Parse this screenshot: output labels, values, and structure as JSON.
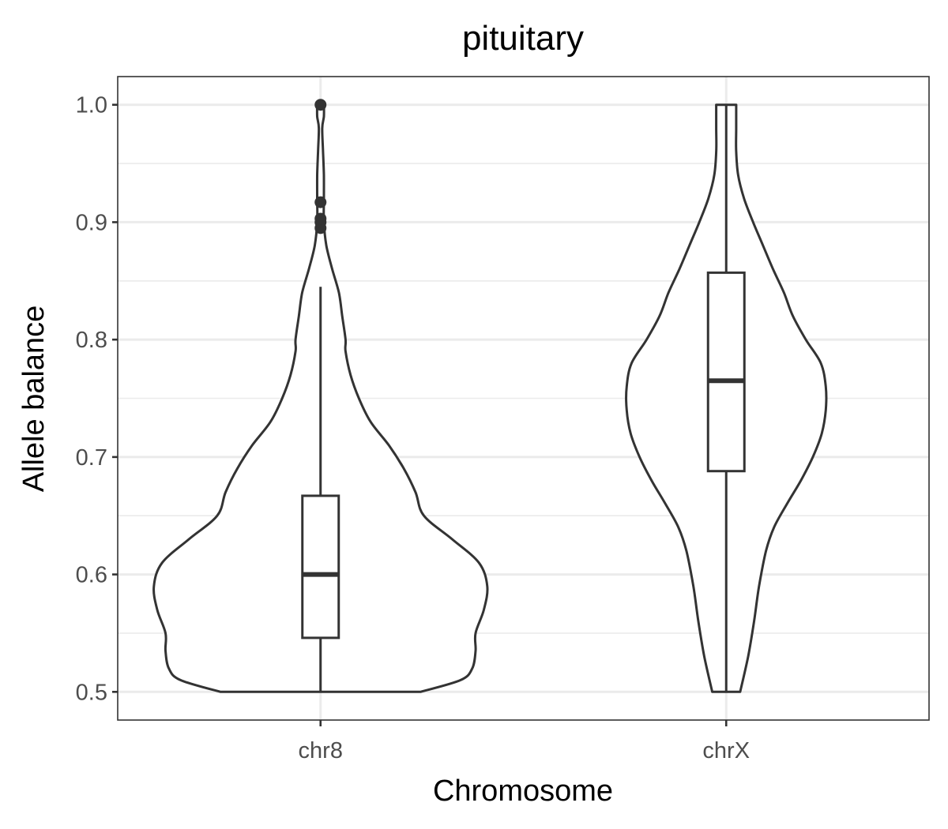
{
  "chart_data": {
    "type": "violin",
    "title": "pituitary",
    "xlabel": "Chromosome",
    "ylabel": "Allele balance",
    "categories": [
      "chr8",
      "chrX"
    ],
    "ylim": [
      0.476,
      1.024
    ],
    "yticks": [
      0.5,
      0.6,
      0.7,
      0.8,
      0.9,
      1.0
    ],
    "ytick_labels": [
      "0.5",
      "0.6",
      "0.7",
      "0.8",
      "0.9",
      "1.0"
    ],
    "grid": true,
    "legend": "none",
    "groups": [
      {
        "category": "chr8",
        "box": {
          "lower_whisker": 0.5,
          "q1": 0.546,
          "median": 0.6,
          "q3": 0.667,
          "upper_whisker": 0.845
        },
        "outliers": [
          0.895,
          0.9,
          0.903,
          0.917,
          1.0
        ],
        "density_profile": [
          [
            0.5,
            0.6
          ],
          [
            0.51,
            0.84
          ],
          [
            0.52,
            0.91
          ],
          [
            0.535,
            0.93
          ],
          [
            0.55,
            0.93
          ],
          [
            0.57,
            0.98
          ],
          [
            0.59,
            1.0
          ],
          [
            0.61,
            0.95
          ],
          [
            0.63,
            0.79
          ],
          [
            0.65,
            0.62
          ],
          [
            0.67,
            0.57
          ],
          [
            0.69,
            0.5
          ],
          [
            0.71,
            0.41
          ],
          [
            0.73,
            0.3
          ],
          [
            0.75,
            0.23
          ],
          [
            0.77,
            0.18
          ],
          [
            0.79,
            0.15
          ],
          [
            0.8,
            0.15
          ],
          [
            0.82,
            0.13
          ],
          [
            0.84,
            0.11
          ],
          [
            0.86,
            0.07
          ],
          [
            0.88,
            0.035
          ],
          [
            0.9,
            0.02
          ],
          [
            0.92,
            0.02
          ],
          [
            0.94,
            0.02
          ],
          [
            0.96,
            0.015
          ],
          [
            0.98,
            0.01
          ],
          [
            0.99,
            0.02
          ],
          [
            1.0,
            0.02
          ]
        ]
      },
      {
        "category": "chrX",
        "box": {
          "lower_whisker": 0.5,
          "q1": 0.688,
          "median": 0.765,
          "q3": 0.857,
          "upper_whisker": 1.0
        },
        "outliers": [],
        "density_profile": [
          [
            0.5,
            0.14
          ],
          [
            0.53,
            0.22
          ],
          [
            0.56,
            0.28
          ],
          [
            0.59,
            0.33
          ],
          [
            0.62,
            0.4
          ],
          [
            0.64,
            0.48
          ],
          [
            0.66,
            0.61
          ],
          [
            0.68,
            0.75
          ],
          [
            0.7,
            0.87
          ],
          [
            0.72,
            0.96
          ],
          [
            0.74,
            1.0
          ],
          [
            0.76,
            1.0
          ],
          [
            0.78,
            0.95
          ],
          [
            0.8,
            0.8
          ],
          [
            0.82,
            0.67
          ],
          [
            0.84,
            0.58
          ],
          [
            0.86,
            0.47
          ],
          [
            0.88,
            0.37
          ],
          [
            0.9,
            0.27
          ],
          [
            0.92,
            0.18
          ],
          [
            0.94,
            0.12
          ],
          [
            0.96,
            0.1
          ],
          [
            0.98,
            0.1
          ],
          [
            1.0,
            0.1
          ]
        ]
      }
    ]
  }
}
